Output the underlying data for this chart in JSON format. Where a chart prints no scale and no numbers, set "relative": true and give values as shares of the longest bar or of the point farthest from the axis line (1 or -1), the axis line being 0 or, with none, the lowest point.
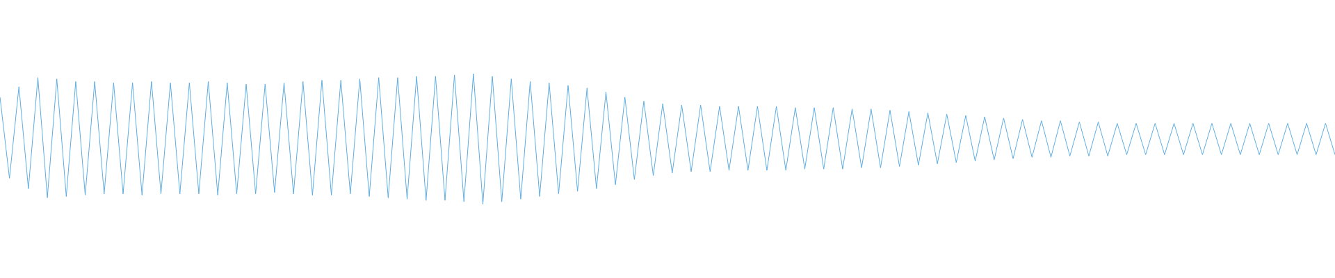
{
  "chart_data": {
    "type": "line",
    "relative": true,
    "color": "#5dade2",
    "categories": [
      null,
      null,
      null,
      null,
      null,
      null,
      null,
      null,
      null,
      null,
      null,
      null,
      null,
      null,
      null,
      null,
      null,
      null,
      null,
      null,
      null,
      null,
      null,
      null,
      null,
      null,
      null,
      null,
      null,
      null,
      null,
      null,
      null,
      null,
      null,
      null,
      null,
      null,
      null,
      null,
      null,
      null,
      null,
      null,
      null,
      null,
      null,
      null,
      null,
      null,
      null,
      null,
      null,
      null,
      null,
      null,
      null,
      null,
      null,
      null,
      null,
      null,
      null,
      null,
      null,
      null,
      null,
      null,
      null,
      null,
      null,
      null,
      null,
      null,
      null,
      null,
      null,
      null,
      null,
      null,
      null,
      null,
      null,
      null,
      null,
      null,
      null,
      null,
      null,
      null,
      null,
      null,
      null,
      null,
      null,
      null,
      null,
      null,
      null,
      null,
      null,
      null,
      null,
      null,
      null,
      null,
      null,
      null,
      null,
      null,
      null,
      null,
      null,
      null,
      null,
      null,
      null,
      null,
      null,
      null,
      null,
      null,
      null,
      null,
      null,
      null,
      null,
      null,
      null,
      null,
      null,
      null,
      null,
      null,
      null,
      null,
      null,
      null,
      null,
      null,
      null,
      null
    ],
    "values": [
      0.82,
      0.2,
      0.9,
      0.12,
      0.97,
      0.05,
      0.96,
      0.06,
      0.94,
      0.07,
      0.94,
      0.08,
      0.93,
      0.08,
      0.93,
      0.07,
      0.94,
      0.08,
      0.93,
      0.08,
      0.93,
      0.08,
      0.94,
      0.07,
      0.93,
      0.08,
      0.92,
      0.08,
      0.92,
      0.09,
      0.93,
      0.08,
      0.94,
      0.07,
      0.95,
      0.07,
      0.95,
      0.08,
      0.96,
      0.06,
      0.97,
      0.05,
      0.97,
      0.04,
      0.98,
      0.03,
      0.98,
      0.03,
      0.99,
      0.02,
      1.0,
      0.0,
      0.98,
      0.02,
      0.96,
      0.04,
      0.94,
      0.06,
      0.93,
      0.08,
      0.91,
      0.1,
      0.89,
      0.12,
      0.86,
      0.15,
      0.82,
      0.19,
      0.79,
      0.22,
      0.77,
      0.24,
      0.76,
      0.25,
      0.76,
      0.25,
      0.75,
      0.26,
      0.75,
      0.26,
      0.75,
      0.26,
      0.75,
      0.26,
      0.74,
      0.27,
      0.74,
      0.27,
      0.74,
      0.27,
      0.73,
      0.28,
      0.73,
      0.28,
      0.72,
      0.29,
      0.71,
      0.3,
      0.7,
      0.31,
      0.69,
      0.32,
      0.68,
      0.33,
      0.67,
      0.34,
      0.66,
      0.35,
      0.65,
      0.36,
      0.64,
      0.36,
      0.64,
      0.37,
      0.63,
      0.37,
      0.63,
      0.37,
      0.62,
      0.38,
      0.62,
      0.38,
      0.62,
      0.38,
      0.62,
      0.38,
      0.62,
      0.38,
      0.62,
      0.38,
      0.62,
      0.38,
      0.62,
      0.38,
      0.62,
      0.38,
      0.62,
      0.38,
      0.62,
      0.38,
      0.62,
      0.38
    ]
  }
}
